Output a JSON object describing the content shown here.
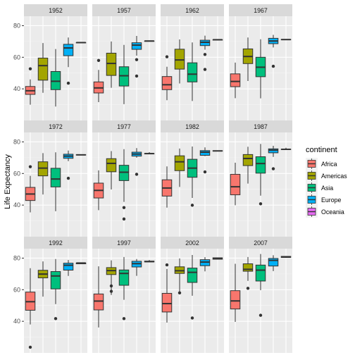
{
  "chart_data": {
    "type": "boxplot",
    "ylabel": "Life Expectancy",
    "ylim": [
      20,
      86
    ],
    "y_ticks": [
      40,
      60,
      80
    ],
    "grid": true,
    "legend": {
      "title": "continent",
      "position": "right",
      "entries": [
        {
          "name": "Africa",
          "color": "#F8766D"
        },
        {
          "name": "Americas",
          "color": "#A3A500"
        },
        {
          "name": "Asia",
          "color": "#00BF7D"
        },
        {
          "name": "Europe",
          "color": "#00B0F6"
        },
        {
          "name": "Oceania",
          "color": "#E76BF3"
        }
      ]
    },
    "categories": [
      "Africa",
      "Americas",
      "Asia",
      "Europe",
      "Oceania"
    ],
    "panels": [
      {
        "year": "1952",
        "boxes": [
          {
            "min": 30,
            "q1": 36.5,
            "median": 38.8,
            "q3": 41.5,
            "max": 46,
            "outliers": [
              52.7
            ]
          },
          {
            "min": 37.5,
            "q1": 45.5,
            "median": 54.7,
            "q3": 59.5,
            "max": 69,
            "outliers": []
          },
          {
            "min": 28.8,
            "q1": 39.5,
            "median": 44.8,
            "q3": 51,
            "max": 65.2,
            "outliers": []
          },
          {
            "min": 53.8,
            "q1": 61,
            "median": 65.9,
            "q3": 68.2,
            "max": 72.5,
            "outliers": [
              43.6
            ]
          },
          {
            "min": 69.1,
            "q1": 69.2,
            "median": 69.3,
            "q3": 69.3,
            "max": 69.4,
            "outliers": []
          }
        ]
      },
      {
        "year": "1957",
        "boxes": [
          {
            "min": 31.6,
            "q1": 37.4,
            "median": 40.6,
            "q3": 44.4,
            "max": 52,
            "outliers": [
              58
            ]
          },
          {
            "min": 40.7,
            "q1": 48.5,
            "median": 56.1,
            "q3": 62.6,
            "max": 70,
            "outliers": []
          },
          {
            "min": 30.3,
            "q1": 41.8,
            "median": 48.3,
            "q3": 54,
            "max": 67.8,
            "outliers": []
          },
          {
            "min": 61,
            "q1": 65,
            "median": 67.7,
            "q3": 69.2,
            "max": 73.5,
            "outliers": [
              58.5,
              48.1
            ]
          },
          {
            "min": 70.2,
            "q1": 70.3,
            "median": 70.3,
            "q3": 70.3,
            "max": 70.3,
            "outliers": []
          }
        ]
      },
      {
        "year": "1962",
        "boxes": [
          {
            "min": 32.8,
            "q1": 39.5,
            "median": 42.6,
            "q3": 47.8,
            "max": 54,
            "outliers": [
              60.3
            ]
          },
          {
            "min": 43.4,
            "q1": 52.5,
            "median": 58.3,
            "q3": 65.1,
            "max": 71.3,
            "outliers": []
          },
          {
            "min": 32.3,
            "q1": 44.4,
            "median": 49.3,
            "q3": 56.5,
            "max": 69.4,
            "outliers": []
          },
          {
            "min": 64.8,
            "q1": 67.4,
            "median": 69.5,
            "q3": 70.8,
            "max": 73.7,
            "outliers": [
              61.8,
              52.3
            ]
          },
          {
            "min": 70.9,
            "q1": 71,
            "median": 71.1,
            "q3": 71.1,
            "max": 71.2,
            "outliers": []
          }
        ]
      },
      {
        "year": "1967",
        "boxes": [
          {
            "min": 34.1,
            "q1": 41.4,
            "median": 44.7,
            "q3": 49.5,
            "max": 56.6,
            "outliers": []
          },
          {
            "min": 45,
            "q1": 56,
            "median": 60.5,
            "q3": 65.3,
            "max": 72.5,
            "outliers": []
          },
          {
            "min": 34,
            "q1": 47.7,
            "median": 53.7,
            "q3": 60,
            "max": 71.4,
            "outliers": []
          },
          {
            "min": 66.2,
            "q1": 68.6,
            "median": 70.3,
            "q3": 72,
            "max": 74.2,
            "outliers": [
              54.3
            ]
          },
          {
            "min": 71.1,
            "q1": 71.2,
            "median": 71.2,
            "q3": 71.3,
            "max": 71.5,
            "outliers": []
          }
        ]
      },
      {
        "year": "1972",
        "boxes": [
          {
            "min": 35.4,
            "q1": 42.9,
            "median": 47,
            "q3": 51.2,
            "max": 58.5,
            "outliers": [
              64.3
            ]
          },
          {
            "min": 46.7,
            "q1": 58.5,
            "median": 63.4,
            "q3": 67.4,
            "max": 72.9,
            "outliers": []
          },
          {
            "min": 36.1,
            "q1": 51.5,
            "median": 56.5,
            "q3": 63.3,
            "max": 73.4,
            "outliers": []
          },
          {
            "min": 67.8,
            "q1": 69.6,
            "median": 71,
            "q3": 72.2,
            "max": 74.5,
            "outliers": [
              57
            ]
          },
          {
            "min": 71.7,
            "q1": 71.8,
            "median": 71.8,
            "q3": 71.9,
            "max": 71.9,
            "outliers": []
          }
        ]
      },
      {
        "year": "1977",
        "boxes": [
          {
            "min": 36.8,
            "q1": 44.5,
            "median": 49.3,
            "q3": 53.9,
            "max": 62,
            "outliers": []
          },
          {
            "min": 49.9,
            "q1": 61.1,
            "median": 66.4,
            "q3": 69.4,
            "max": 74.2,
            "outliers": []
          },
          {
            "min": 42,
            "q1": 55.5,
            "median": 60.8,
            "q3": 65.2,
            "max": 75.4,
            "outliers": [
              38.4,
              31.2
            ]
          },
          {
            "min": 70,
            "q1": 71,
            "median": 72.3,
            "q3": 73.5,
            "max": 76.1,
            "outliers": [
              59.5
            ]
          },
          {
            "min": 72.2,
            "q1": 72.5,
            "median": 72.6,
            "q3": 72.6,
            "max": 73.5,
            "outliers": []
          }
        ]
      },
      {
        "year": "1982",
        "boxes": [
          {
            "min": 38.4,
            "q1": 45.7,
            "median": 50.8,
            "q3": 56,
            "max": 64.5,
            "outliers": []
          },
          {
            "min": 51.5,
            "q1": 61.8,
            "median": 67.4,
            "q3": 71.2,
            "max": 75.8,
            "outliers": []
          },
          {
            "min": 44.5,
            "q1": 57.6,
            "median": 63.4,
            "q3": 69,
            "max": 77.1,
            "outliers": [
              39.9
            ]
          },
          {
            "min": 71,
            "q1": 71.5,
            "median": 73.5,
            "q3": 74.5,
            "max": 76.5,
            "outliers": [
              61
            ]
          },
          {
            "min": 74.1,
            "q1": 74.2,
            "median": 74.3,
            "q3": 74.4,
            "max": 74.5,
            "outliers": []
          }
        ]
      },
      {
        "year": "1987",
        "boxes": [
          {
            "min": 39.9,
            "q1": 46.5,
            "median": 51.6,
            "q3": 59.5,
            "max": 66.8,
            "outliers": []
          },
          {
            "min": 53.6,
            "q1": 65,
            "median": 69.5,
            "q3": 72,
            "max": 76.9,
            "outliers": []
          },
          {
            "min": 46,
            "q1": 60.2,
            "median": 66.3,
            "q3": 70.6,
            "max": 78.7,
            "outliers": [
              40.8
            ]
          },
          {
            "min": 70.5,
            "q1": 73.1,
            "median": 74.8,
            "q3": 75.6,
            "max": 77.5,
            "outliers": [
              63
            ]
          },
          {
            "min": 75.2,
            "q1": 75.3,
            "median": 75.3,
            "q3": 75.4,
            "max": 76.3,
            "outliers": []
          }
        ]
      },
      {
        "year": "1992",
        "boxes": [
          {
            "min": 38,
            "q1": 47,
            "median": 52.4,
            "q3": 58.5,
            "max": 73.6,
            "outliers": [
              23.6
            ]
          },
          {
            "min": 55.6,
            "q1": 67.5,
            "median": 69.9,
            "q3": 72.3,
            "max": 77.9,
            "outliers": []
          },
          {
            "min": 50.9,
            "q1": 60.5,
            "median": 68.7,
            "q3": 71.5,
            "max": 79.4,
            "outliers": [
              41.7
            ]
          },
          {
            "min": 68.7,
            "q1": 72.4,
            "median": 75.5,
            "q3": 76.8,
            "max": 78.8,
            "outliers": []
          },
          {
            "min": 76.3,
            "q1": 76.4,
            "median": 76.9,
            "q3": 76.9,
            "max": 77.1,
            "outliers": []
          }
        ]
      },
      {
        "year": "1997",
        "boxes": [
          {
            "min": 36.1,
            "q1": 47.2,
            "median": 52.8,
            "q3": 57.3,
            "max": 74.8,
            "outliers": []
          },
          {
            "min": 56.7,
            "q1": 69.6,
            "median": 72.1,
            "q3": 74,
            "max": 78.6,
            "outliers": [
              59,
              62.4
            ]
          },
          {
            "min": 53.6,
            "q1": 62.8,
            "median": 70.3,
            "q3": 72.5,
            "max": 80.7,
            "outliers": [
              41.7
            ]
          },
          {
            "min": 68.8,
            "q1": 74.4,
            "median": 76.5,
            "q3": 78,
            "max": 79.4,
            "outliers": []
          },
          {
            "min": 77.5,
            "q1": 77.6,
            "median": 77.8,
            "q3": 78.1,
            "max": 78.8,
            "outliers": []
          }
        ]
      },
      {
        "year": "2002",
        "boxes": [
          {
            "min": 39.2,
            "q1": 45.9,
            "median": 51.2,
            "q3": 57.7,
            "max": 73.1,
            "outliers": [
              75.7
            ]
          },
          {
            "min": 58.5,
            "q1": 70.3,
            "median": 72,
            "q3": 74.5,
            "max": 79.8,
            "outliers": [
              58
            ]
          },
          {
            "min": 56.2,
            "q1": 64.6,
            "median": 71,
            "q3": 73.7,
            "max": 82,
            "outliers": [
              42.1
            ]
          },
          {
            "min": 71.6,
            "q1": 75.2,
            "median": 77.5,
            "q3": 79,
            "max": 80.6,
            "outliers": []
          },
          {
            "min": 79.1,
            "q1": 79.3,
            "median": 79.7,
            "q3": 80.2,
            "max": 80.4,
            "outliers": []
          }
        ]
      },
      {
        "year": "2007",
        "boxes": [
          {
            "min": 39.6,
            "q1": 47.8,
            "median": 52.9,
            "q3": 59.4,
            "max": 76.4,
            "outliers": []
          },
          {
            "min": 65.6,
            "q1": 71.7,
            "median": 72.9,
            "q3": 76.4,
            "max": 80.7,
            "outliers": [
              60.9
            ]
          },
          {
            "min": 59.7,
            "q1": 65.5,
            "median": 72.4,
            "q3": 75.6,
            "max": 82.6,
            "outliers": [
              43.8
            ]
          },
          {
            "min": 71.8,
            "q1": 75,
            "median": 78.6,
            "q3": 79.8,
            "max": 81.8,
            "outliers": []
          },
          {
            "min": 80.2,
            "q1": 80.4,
            "median": 80.7,
            "q3": 81.1,
            "max": 81.2,
            "outliers": []
          }
        ]
      }
    ]
  }
}
